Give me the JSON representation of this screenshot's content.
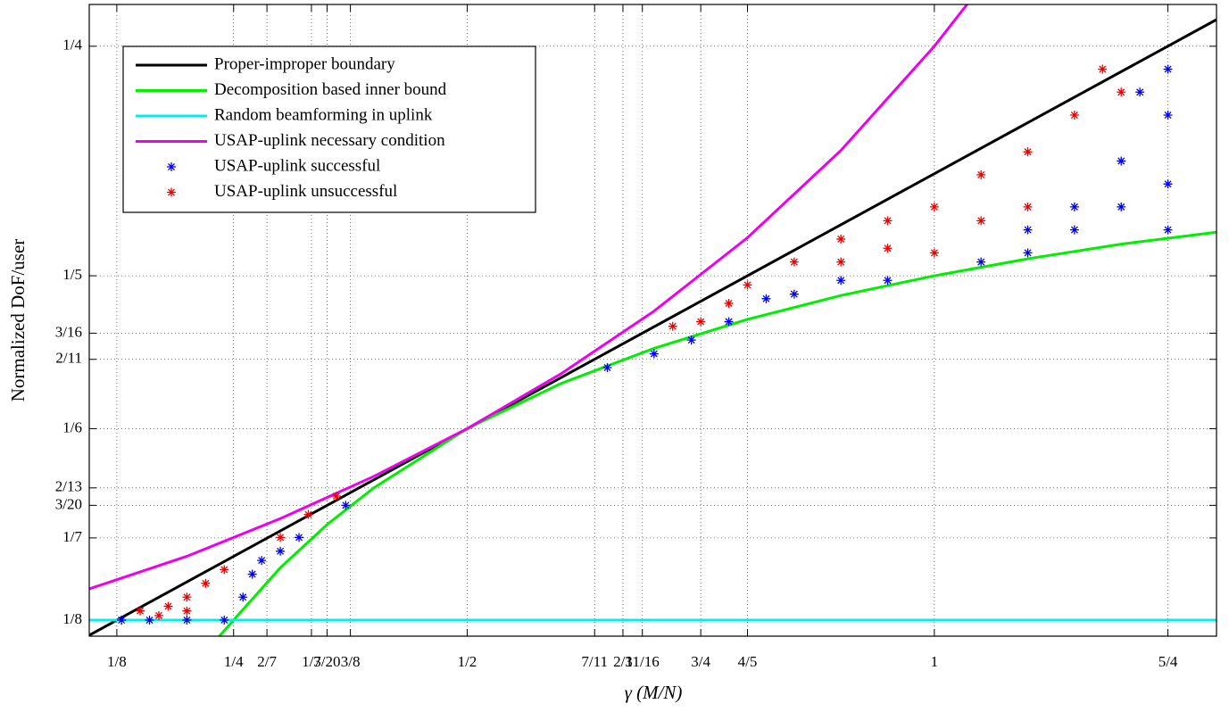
{
  "chart_data": {
    "type": "line",
    "xlabel": "γ (M/N)",
    "ylabel": "Normalized DoF/user",
    "xlim": [
      0.0955,
      1.302
    ],
    "ylim": [
      0.1215,
      0.2591
    ],
    "xticks": [
      {
        "value": 0.125,
        "label": "1/8"
      },
      {
        "value": 0.25,
        "label": "1/4"
      },
      {
        "value": 0.2857,
        "label": "2/7"
      },
      {
        "value": 0.3333,
        "label": "1/3"
      },
      {
        "value": 0.35,
        "label": "7/20"
      },
      {
        "value": 0.375,
        "label": "3/8"
      },
      {
        "value": 0.5,
        "label": "1/2"
      },
      {
        "value": 0.6364,
        "label": "7/11"
      },
      {
        "value": 0.6667,
        "label": "2/3"
      },
      {
        "value": 0.6875,
        "label": "11/16"
      },
      {
        "value": 0.75,
        "label": "3/4"
      },
      {
        "value": 0.8,
        "label": "4/5"
      },
      1,
      {
        "value": 1.25,
        "label": "5/4"
      }
    ],
    "yticks": [
      {
        "value": 0.125,
        "label": "1/8"
      },
      {
        "value": 0.1429,
        "label": "1/7"
      },
      {
        "value": 0.15,
        "label": "3/20"
      },
      {
        "value": 0.1538,
        "label": "2/13"
      },
      {
        "value": 0.1667,
        "label": "1/6"
      },
      {
        "value": 0.1818,
        "label": "2/11"
      },
      {
        "value": 0.1875,
        "label": "3/16"
      },
      {
        "value": 0.2,
        "label": "1/5"
      },
      {
        "value": 0.25,
        "label": "1/4"
      }
    ],
    "grid": true,
    "legend": "upper left",
    "series": [
      {
        "name": "Proper-improper boundary",
        "type": "line",
        "color": "#000000",
        "x": [
          0.0955,
          1.302
        ],
        "y": [
          0.1217,
          0.2558
        ]
      },
      {
        "name": "Decomposition based inner bound",
        "type": "line",
        "color": "#00ee00",
        "x": [
          0.23,
          0.25,
          0.3,
          0.35,
          0.4,
          0.5,
          0.6,
          0.7,
          0.8,
          0.9,
          1.0,
          1.1,
          1.2,
          1.302
        ],
        "y": [
          0.1204,
          0.125,
          0.1364,
          0.1458,
          0.1538,
          0.1667,
          0.1765,
          0.1842,
          0.1905,
          0.1957,
          0.2,
          0.2037,
          0.2069,
          0.2095
        ]
      },
      {
        "name": "Random beamforming in uplink",
        "type": "line",
        "color": "#00eeee",
        "x": [
          0.0955,
          1.302
        ],
        "y": [
          0.125,
          0.125
        ]
      },
      {
        "name": "USAP-uplink necessary condition",
        "type": "line",
        "color": "#ee00ee",
        "x": [
          0.0955,
          0.2,
          0.3,
          0.4,
          0.5,
          0.6,
          0.7,
          0.8,
          0.9,
          1.0,
          1.04
        ],
        "y": [
          0.1318,
          0.1389,
          0.1471,
          0.1563,
          0.1667,
          0.1786,
          0.1923,
          0.2083,
          0.2273,
          0.25,
          0.2604
        ]
      },
      {
        "name": "USAP-uplink successful",
        "type": "scatter",
        "color": "#0000ee",
        "x": [
          0.13,
          0.16,
          0.2,
          0.24,
          0.26,
          0.27,
          0.28,
          0.3,
          0.32,
          0.37,
          0.65,
          0.7,
          0.74,
          0.78,
          0.82,
          0.85,
          0.9,
          0.95,
          1.05,
          1.1,
          1.15,
          1.2,
          1.25,
          1.25,
          1.25,
          1.25,
          1.2,
          1.15,
          1.22,
          1.1
        ],
        "y": [
          0.125,
          0.125,
          0.125,
          0.125,
          0.13,
          0.135,
          0.138,
          0.14,
          0.143,
          0.15,
          0.18,
          0.183,
          0.186,
          0.19,
          0.195,
          0.196,
          0.199,
          0.199,
          0.203,
          0.205,
          0.215,
          0.225,
          0.235,
          0.22,
          0.21,
          0.245,
          0.215,
          0.21,
          0.24,
          0.21
        ]
      },
      {
        "name": "USAP-uplink unsuccessful",
        "type": "scatter",
        "color": "#ee0000",
        "x": [
          0.15,
          0.18,
          0.2,
          0.22,
          0.24,
          0.17,
          0.2,
          0.3,
          0.33,
          0.36,
          0.72,
          0.75,
          0.78,
          0.85,
          0.9,
          0.95,
          0.9,
          1.0,
          1.0,
          1.05,
          1.1,
          1.1,
          1.15,
          1.2,
          1.05,
          0.95,
          1.18,
          0.8
        ],
        "y": [
          0.127,
          0.128,
          0.13,
          0.133,
          0.136,
          0.126,
          0.127,
          0.143,
          0.148,
          0.152,
          0.189,
          0.19,
          0.194,
          0.203,
          0.208,
          0.212,
          0.203,
          0.215,
          0.205,
          0.222,
          0.227,
          0.215,
          0.235,
          0.24,
          0.212,
          0.206,
          0.245,
          0.198
        ]
      }
    ]
  }
}
